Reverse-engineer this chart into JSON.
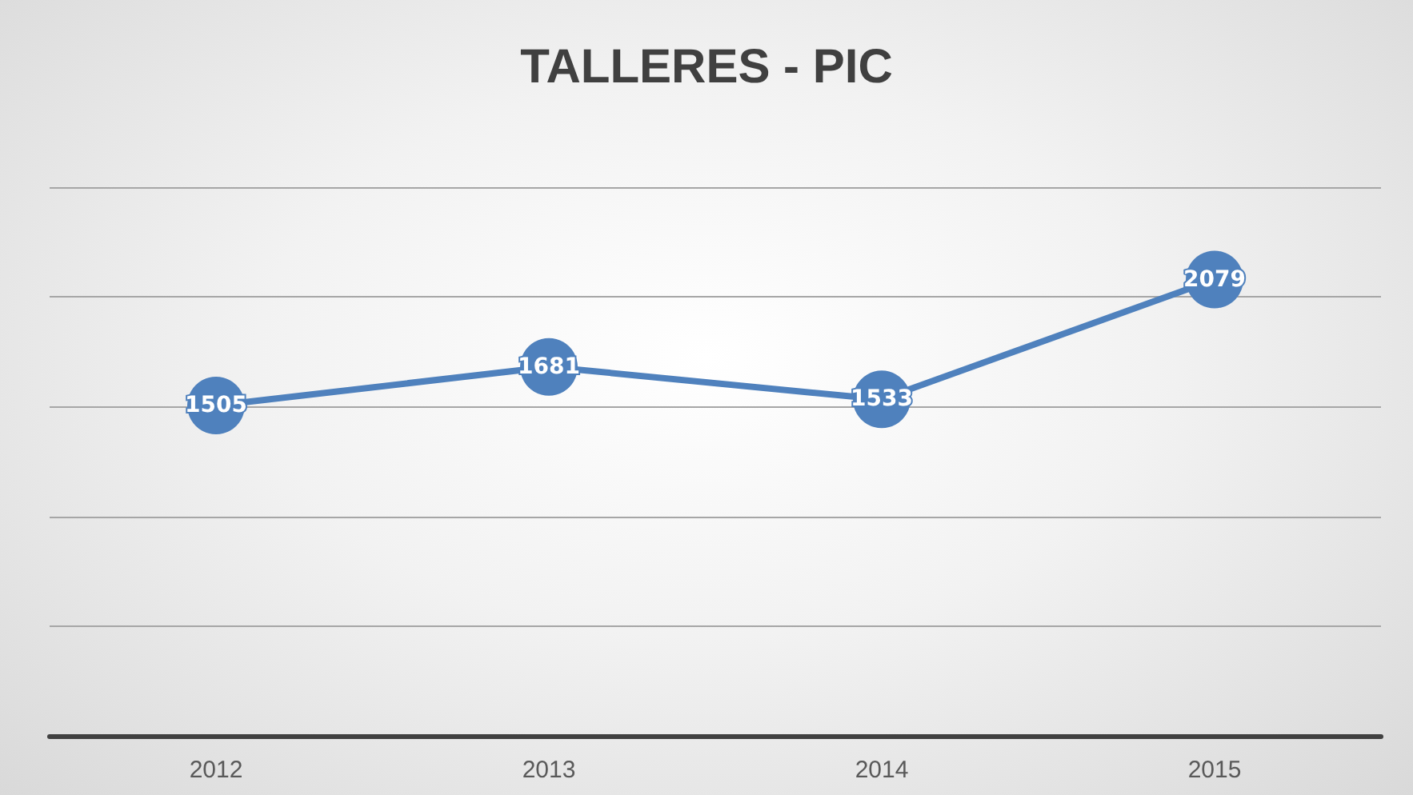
{
  "chart_data": {
    "type": "line",
    "title": "TALLERES - PIC",
    "categories": [
      "2012",
      "2013",
      "2014",
      "2015"
    ],
    "series": [
      {
        "color": "#4f81bd",
        "values": [
          1505,
          1681,
          1533,
          2079
        ]
      }
    ],
    "ylim": [
      0,
      2500
    ],
    "yticks": [
      {
        "value": 0,
        "label": null
      },
      {
        "value": 500,
        "label": null
      },
      {
        "value": 1000,
        "label": null
      },
      {
        "value": 1500,
        "label": null
      },
      {
        "value": 2000,
        "label": null
      },
      {
        "value": 2500,
        "label": null
      }
    ],
    "tick_labels": "x",
    "grid": "y",
    "marker": "circle",
    "line_style": "solid",
    "data_labels": true
  }
}
